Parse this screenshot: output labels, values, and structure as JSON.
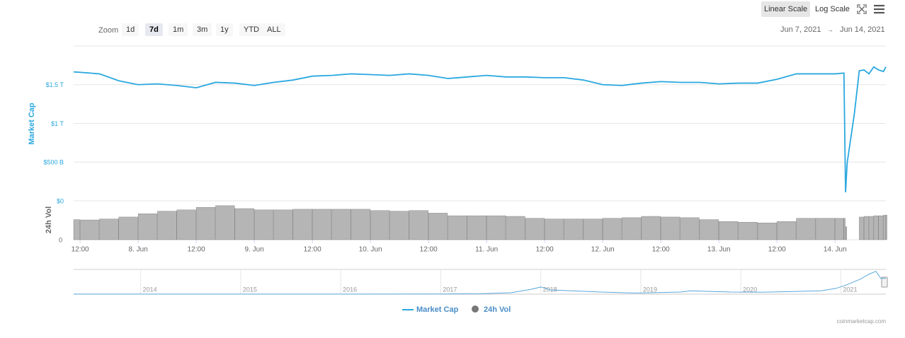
{
  "chart_data": {
    "type": "line",
    "ytitle": "Market Cap",
    "y2title": "24h Vol",
    "x": [
      "2021-06-07T10:40",
      "2021-06-07T12:00",
      "2021-06-07T16:00",
      "2021-06-07T20:00",
      "2021-06-08T00:00",
      "2021-06-08T04:00",
      "2021-06-08T08:00",
      "2021-06-08T12:00",
      "2021-06-08T16:00",
      "2021-06-08T20:00",
      "2021-06-09T00:00",
      "2021-06-09T04:00",
      "2021-06-09T08:00",
      "2021-06-09T12:00",
      "2021-06-09T16:00",
      "2021-06-09T20:00",
      "2021-06-10T00:00",
      "2021-06-10T04:00",
      "2021-06-10T08:00",
      "2021-06-10T12:00",
      "2021-06-10T16:00",
      "2021-06-10T20:00",
      "2021-06-11T00:00",
      "2021-06-11T04:00",
      "2021-06-11T08:00",
      "2021-06-11T12:00",
      "2021-06-11T16:00",
      "2021-06-11T20:00",
      "2021-06-12T00:00",
      "2021-06-12T04:00",
      "2021-06-12T08:00",
      "2021-06-12T12:00",
      "2021-06-12T16:00",
      "2021-06-12T20:00",
      "2021-06-13T00:00",
      "2021-06-13T04:00",
      "2021-06-13T08:00",
      "2021-06-13T12:00",
      "2021-06-13T16:00",
      "2021-06-13T20:00",
      "2021-06-14T00:00",
      "2021-06-14T01:50",
      "2021-06-14T02:10",
      "2021-06-14T02:30",
      "2021-06-14T04:00",
      "2021-06-14T05:00",
      "2021-06-14T06:00",
      "2021-06-14T07:00",
      "2021-06-14T08:00",
      "2021-06-14T09:00",
      "2021-06-14T10:00",
      "2021-06-14T10:30"
    ],
    "series": [
      {
        "name": "Market Cap",
        "color": "#2aa8df",
        "values": [
          1665000000000.0,
          1660000000000.0,
          1640000000000.0,
          1550000000000.0,
          1500000000000.0,
          1510000000000.0,
          1490000000000.0,
          1460000000000.0,
          1530000000000.0,
          1520000000000.0,
          1490000000000.0,
          1530000000000.0,
          1560000000000.0,
          1610000000000.0,
          1620000000000.0,
          1640000000000.0,
          1630000000000.0,
          1620000000000.0,
          1640000000000.0,
          1620000000000.0,
          1580000000000.0,
          1600000000000.0,
          1620000000000.0,
          1600000000000.0,
          1600000000000.0,
          1590000000000.0,
          1590000000000.0,
          1560000000000.0,
          1500000000000.0,
          1490000000000.0,
          1520000000000.0,
          1540000000000.0,
          1530000000000.0,
          1530000000000.0,
          1510000000000.0,
          1520000000000.0,
          1520000000000.0,
          1570000000000.0,
          1640000000000.0,
          1640000000000.0,
          1640000000000.0,
          1650000000000.0,
          110000000000.0,
          490000000000.0,
          1130000000000.0,
          1680000000000.0,
          1690000000000.0,
          1640000000000.0,
          1730000000000.0,
          1690000000000.0,
          1670000000000.0,
          1730000000000.0
        ]
      },
      {
        "name": "24h Vol",
        "color": "#777777",
        "axis": "y2",
        "values": [
          62000000000.0,
          61000000000.0,
          64000000000.0,
          70000000000.0,
          80000000000.0,
          88000000000.0,
          92000000000.0,
          100000000000.0,
          105000000000.0,
          96000000000.0,
          92000000000.0,
          92000000000.0,
          94000000000.0,
          94000000000.0,
          94000000000.0,
          94000000000.0,
          90000000000.0,
          88000000000.0,
          90000000000.0,
          82000000000.0,
          74000000000.0,
          74000000000.0,
          74000000000.0,
          72000000000.0,
          66000000000.0,
          64000000000.0,
          64000000000.0,
          64000000000.0,
          66000000000.0,
          68000000000.0,
          72000000000.0,
          70000000000.0,
          68000000000.0,
          62000000000.0,
          56000000000.0,
          54000000000.0,
          52000000000.0,
          56000000000.0,
          66000000000.0,
          66000000000.0,
          66000000000.0,
          66000000000.0,
          40000000000.0,
          null,
          null,
          70000000000.0,
          72000000000.0,
          72000000000.0,
          74000000000.0,
          74000000000.0,
          76000000000.0,
          76000000000.0
        ]
      }
    ],
    "xlim": [
      "2021-06-07T10:40",
      "2021-06-14T10:30"
    ],
    "xticks": [
      {
        "value": "2021-06-07T12:00",
        "label": "12:00"
      },
      {
        "value": "2021-06-08T00:00",
        "label": "8. Jun"
      },
      {
        "value": "2021-06-08T12:00",
        "label": "12:00"
      },
      {
        "value": "2021-06-09T00:00",
        "label": "9. Jun"
      },
      {
        "value": "2021-06-09T12:00",
        "label": "12:00"
      },
      {
        "value": "2021-06-10T00:00",
        "label": "10. Jun"
      },
      {
        "value": "2021-06-10T12:00",
        "label": "12:00"
      },
      {
        "value": "2021-06-11T00:00",
        "label": "11. Jun"
      },
      {
        "value": "2021-06-11T12:00",
        "label": "12:00"
      },
      {
        "value": "2021-06-12T00:00",
        "label": "12. Jun"
      },
      {
        "value": "2021-06-12T12:00",
        "label": "12:00"
      },
      {
        "value": "2021-06-13T00:00",
        "label": "13. Jun"
      },
      {
        "value": "2021-06-13T12:00",
        "label": "12:00"
      },
      {
        "value": "2021-06-14T00:00",
        "label": "14. Jun"
      }
    ],
    "ylim": [
      0,
      2000000000000.0
    ],
    "yticks": [
      {
        "value": 0,
        "label": "$0"
      },
      {
        "value": 500000000000.0,
        "label": "$500 B"
      },
      {
        "value": 1000000000000.0,
        "label": "$1 T"
      },
      {
        "value": 1500000000000.0,
        "label": "$1.5 T"
      }
    ],
    "y2lim": [
      0,
      120000000000.0
    ],
    "y2ticks": [
      0
    ],
    "grid": true,
    "navigator": {
      "x": [
        2013.33,
        2014,
        2015,
        2016,
        2017,
        2017.4,
        2017.7,
        2017.9,
        2018.0,
        2018.1,
        2018.3,
        2018.6,
        2018.9,
        2019.0,
        2019.4,
        2019.5,
        2019.9,
        2020.2,
        2020.5,
        2020.8,
        2020.95,
        2021.05,
        2021.2,
        2021.28,
        2021.35,
        2021.4,
        2021.45
      ],
      "values": [
        10000000000.0,
        10000000000.0,
        10000000000.0,
        10000000000.0,
        20000000000.0,
        50000000000.0,
        150000000000.0,
        500000000000.0,
        750000000000.0,
        450000000000.0,
        350000000000.0,
        220000000000.0,
        130000000000.0,
        120000000000.0,
        220000000000.0,
        350000000000.0,
        220000000000.0,
        200000000000.0,
        270000000000.0,
        350000000000.0,
        600000000000.0,
        950000000000.0,
        1600000000000.0,
        2100000000000.0,
        2400000000000.0,
        1650000000000.0,
        1650000000000.0
      ],
      "color": "#5aa7d8",
      "xlim": [
        2013.33,
        2021.45
      ],
      "ylim": [
        0,
        2600000000000.0
      ],
      "xticks": [
        {
          "value": 2014,
          "label": "2014"
        },
        {
          "value": 2015,
          "label": "2015"
        },
        {
          "value": 2016,
          "label": "2016"
        },
        {
          "value": 2017,
          "label": "2017"
        },
        {
          "value": 2018,
          "label": "2018"
        },
        {
          "value": 2019,
          "label": "2019"
        },
        {
          "value": 2020,
          "label": "2020"
        },
        {
          "value": 2021,
          "label": "2021"
        }
      ]
    }
  },
  "zoom": {
    "label": "Zoom",
    "items": [
      "1d",
      "7d",
      "1m",
      "3m",
      "1y",
      "YTD",
      "ALL"
    ],
    "selected": 1
  },
  "scale": {
    "items": [
      "Linear Scale",
      "Log Scale"
    ],
    "selected": 0
  },
  "range": {
    "from": "Jun 7, 2021",
    "arrow": "→",
    "to": "Jun 14, 2021"
  },
  "credits": "coinmarketcap.com"
}
